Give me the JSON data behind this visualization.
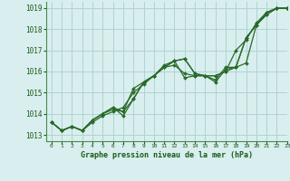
{
  "title": "Graphe pression niveau de la mer (hPa)",
  "xlim": [
    -0.5,
    23
  ],
  "ylim": [
    1012.7,
    1019.3
  ],
  "yticks": [
    1013,
    1014,
    1015,
    1016,
    1017,
    1018,
    1019
  ],
  "xticks": [
    0,
    1,
    2,
    3,
    4,
    5,
    6,
    7,
    8,
    9,
    10,
    11,
    12,
    13,
    14,
    15,
    16,
    17,
    18,
    19,
    20,
    21,
    22,
    23
  ],
  "background_color": "#d9eeee",
  "grid_color": "#aed4d4",
  "line_color": "#2a6a2a",
  "border_color": "#4a8a4a",
  "text_color": "#1a5a1a",
  "series": [
    [
      1013.6,
      1013.2,
      1013.4,
      1013.2,
      1013.6,
      1013.9,
      1014.1,
      1014.3,
      1015.0,
      1015.4,
      1015.8,
      1016.3,
      1016.5,
      1016.6,
      1015.9,
      1015.8,
      1015.8,
      1016.0,
      1017.0,
      1017.5,
      1018.3,
      1018.8,
      1019.0,
      1019.0
    ],
    [
      1013.6,
      1013.2,
      1013.4,
      1013.2,
      1013.7,
      1014.0,
      1014.2,
      1014.1,
      1014.7,
      1015.5,
      1015.8,
      1016.2,
      1016.5,
      1016.6,
      1015.9,
      1015.8,
      1015.5,
      1016.1,
      1016.2,
      1017.6,
      1018.2,
      1018.7,
      1019.0,
      1019.0
    ],
    [
      1013.6,
      1013.2,
      1013.4,
      1013.2,
      1013.7,
      1014.0,
      1014.3,
      1014.1,
      1015.2,
      1015.5,
      1015.8,
      1016.2,
      1016.5,
      1015.7,
      1015.8,
      1015.8,
      1015.8,
      1016.0,
      1016.2,
      1017.6,
      1018.2,
      1018.8,
      1019.0,
      1019.0
    ],
    [
      1013.6,
      1013.2,
      1013.4,
      1013.2,
      1013.7,
      1014.0,
      1014.3,
      1013.9,
      1014.7,
      1015.5,
      1015.8,
      1016.2,
      1016.3,
      1015.9,
      1015.8,
      1015.8,
      1015.6,
      1016.2,
      1016.2,
      1016.4,
      1018.2,
      1018.7,
      1019.0,
      1019.0
    ]
  ]
}
